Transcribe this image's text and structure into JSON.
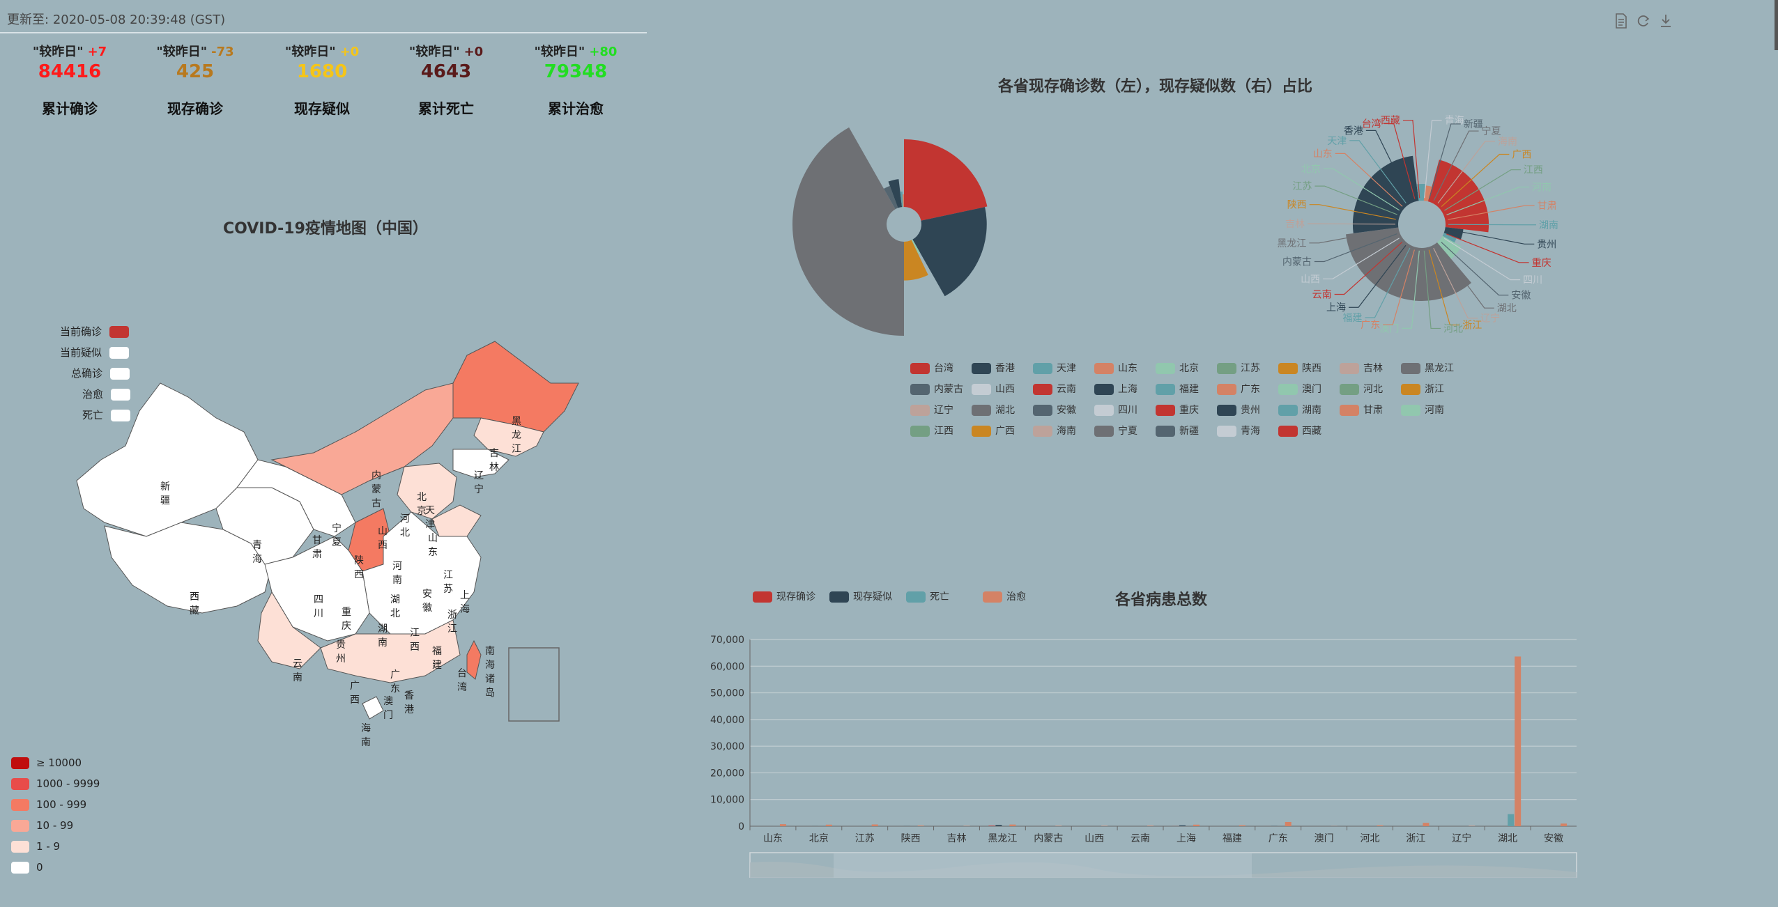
{
  "header": {
    "update_label": "更新至:",
    "update_time": "2020-05-08 20:39:48 (GST)"
  },
  "stats": [
    {
      "compare": "\"较昨日\"",
      "delta": "+7",
      "value": "84416",
      "label": "累计确诊",
      "color": "#ff1a1a",
      "delta_color": "#ff1a1a"
    },
    {
      "compare": "\"较昨日\"",
      "delta": "-73",
      "value": "425",
      "label": "现存确诊",
      "color": "#b8791e",
      "delta_color": "#b8791e"
    },
    {
      "compare": "\"较昨日\"",
      "delta": "+0",
      "value": "1680",
      "label": "现存疑似",
      "color": "#f5c518",
      "delta_color": "#f5c518"
    },
    {
      "compare": "\"较昨日\"",
      "delta": "+0",
      "value": "4643",
      "label": "累计死亡",
      "color": "#5a1a1a",
      "delta_color": "#5a1a1a"
    },
    {
      "compare": "\"较昨日\"",
      "delta": "+80",
      "value": "79348",
      "label": "累计治愈",
      "color": "#22dd22",
      "delta_color": "#22dd22"
    }
  ],
  "toolbar": {
    "icons": [
      "document-icon",
      "refresh-icon",
      "download-icon"
    ]
  },
  "map": {
    "title": "COVID-19疫情地图（中国）",
    "series_legend": [
      {
        "label": "当前确诊",
        "color": "#c23531"
      },
      {
        "label": "当前疑似",
        "color": "#ffffff"
      },
      {
        "label": "总确诊",
        "color": "#ffffff"
      },
      {
        "label": "治愈",
        "color": "#ffffff"
      },
      {
        "label": "死亡",
        "color": "#ffffff"
      }
    ],
    "visual_map": [
      {
        "label": "≥ 10000",
        "color": "#c00e0e"
      },
      {
        "label": "1000 - 9999",
        "color": "#e84c4a"
      },
      {
        "label": "100 - 999",
        "color": "#f47a62"
      },
      {
        "label": "10 - 99",
        "color": "#f9a896"
      },
      {
        "label": "1 - 9",
        "color": "#fde0d6"
      },
      {
        "label": "0",
        "color": "#ffffff"
      }
    ],
    "province_labels": [
      "黑龙江",
      "吉林",
      "辽宁",
      "内蒙古",
      "北京",
      "天津",
      "河北",
      "山西",
      "山东",
      "新疆",
      "西藏",
      "青海",
      "甘肃",
      "宁夏",
      "陕西",
      "河南",
      "江苏",
      "上海",
      "安徽",
      "湖北",
      "浙江",
      "四川",
      "重庆",
      "湖南",
      "江西",
      "福建",
      "台湾",
      "贵州",
      "云南",
      "广西",
      "广东",
      "香港",
      "澳门",
      "海南",
      "南海诸岛"
    ]
  },
  "pie": {
    "title": "各省现存确诊数（左），现存疑似数（右）占比",
    "legend": [
      {
        "name": "台湾",
        "color": "#c23531"
      },
      {
        "name": "香港",
        "color": "#2f4554"
      },
      {
        "name": "天津",
        "color": "#61a0a8"
      },
      {
        "name": "山东",
        "color": "#d48265"
      },
      {
        "name": "北京",
        "color": "#91c7ae"
      },
      {
        "name": "江苏",
        "color": "#749f83"
      },
      {
        "name": "陕西",
        "color": "#ca8622"
      },
      {
        "name": "吉林",
        "color": "#bda29a"
      },
      {
        "name": "黑龙江",
        "color": "#6e7074"
      },
      {
        "name": "内蒙古",
        "color": "#546570"
      },
      {
        "name": "山西",
        "color": "#c4ccd3"
      },
      {
        "name": "云南",
        "color": "#c23531"
      },
      {
        "name": "上海",
        "color": "#2f4554"
      },
      {
        "name": "福建",
        "color": "#61a0a8"
      },
      {
        "name": "广东",
        "color": "#d48265"
      },
      {
        "name": "澳门",
        "color": "#91c7ae"
      },
      {
        "name": "河北",
        "color": "#749f83"
      },
      {
        "name": "浙江",
        "color": "#ca8622"
      },
      {
        "name": "辽宁",
        "color": "#bda29a"
      },
      {
        "name": "湖北",
        "color": "#6e7074"
      },
      {
        "name": "安徽",
        "color": "#546570"
      },
      {
        "name": "四川",
        "color": "#c4ccd3"
      },
      {
        "name": "重庆",
        "color": "#c23531"
      },
      {
        "name": "贵州",
        "color": "#2f4554"
      },
      {
        "name": "湖南",
        "color": "#61a0a8"
      },
      {
        "name": "甘肃",
        "color": "#d48265"
      },
      {
        "name": "河南",
        "color": "#91c7ae"
      },
      {
        "name": "江西",
        "color": "#749f83"
      },
      {
        "name": "广西",
        "color": "#ca8622"
      },
      {
        "name": "海南",
        "color": "#bda29a"
      },
      {
        "name": "宁夏",
        "color": "#6e7074"
      },
      {
        "name": "新疆",
        "color": "#546570"
      },
      {
        "name": "青海",
        "color": "#c4ccd3"
      },
      {
        "name": "西藏",
        "color": "#c23531"
      }
    ],
    "right_labels": [
      {
        "name": "西藏",
        "color": "#c23531"
      },
      {
        "name": "青海",
        "color": "#c4ccd3"
      },
      {
        "name": "新疆",
        "color": "#546570"
      },
      {
        "name": "宁夏",
        "color": "#6e7074"
      },
      {
        "name": "海南",
        "color": "#bda29a"
      },
      {
        "name": "广西",
        "color": "#ca8622"
      },
      {
        "name": "江西",
        "color": "#749f83"
      },
      {
        "name": "河南",
        "color": "#91c7ae"
      },
      {
        "name": "甘肃",
        "color": "#d48265"
      },
      {
        "name": "湖南",
        "color": "#61a0a8"
      },
      {
        "name": "贵州",
        "color": "#2f4554"
      },
      {
        "name": "重庆",
        "color": "#c23531"
      },
      {
        "name": "四川",
        "color": "#c4ccd3"
      },
      {
        "name": "安徽",
        "color": "#546570"
      },
      {
        "name": "湖北",
        "color": "#6e7074"
      },
      {
        "name": "辽宁",
        "color": "#bda29a"
      },
      {
        "name": "浙江",
        "color": "#ca8622"
      },
      {
        "name": "河北",
        "color": "#749f83"
      },
      {
        "name": "澳门",
        "color": "#91c7ae"
      },
      {
        "name": "广东",
        "color": "#d48265"
      },
      {
        "name": "福建",
        "color": "#61a0a8"
      },
      {
        "name": "上海",
        "color": "#2f4554"
      },
      {
        "name": "云南",
        "color": "#c23531"
      },
      {
        "name": "山西",
        "color": "#c4ccd3"
      },
      {
        "name": "内蒙古",
        "color": "#546570"
      },
      {
        "name": "黑龙江",
        "color": "#6e7074"
      },
      {
        "name": "吉林",
        "color": "#bda29a"
      },
      {
        "name": "陕西",
        "color": "#ca8622"
      },
      {
        "name": "江苏",
        "color": "#749f83"
      },
      {
        "name": "北京",
        "color": "#91c7ae"
      },
      {
        "name": "山东",
        "color": "#d48265"
      },
      {
        "name": "天津",
        "color": "#61a0a8"
      },
      {
        "name": "香港",
        "color": "#2f4554"
      },
      {
        "name": "台湾",
        "color": "#c23531"
      }
    ]
  },
  "chart_data": [
    {
      "type": "pie",
      "title": "各省现存确诊数（左），现存疑似数（右）占比",
      "rose_type": "radius",
      "left_ring_note": "现存确诊",
      "slices": [
        {
          "name": "台湾",
          "value": 58
        },
        {
          "name": "香港",
          "value": 54
        },
        {
          "name": "北京",
          "value": 3
        },
        {
          "name": "陕西",
          "value": 19
        },
        {
          "name": "黑龙江",
          "value": 112
        },
        {
          "name": "内蒙古",
          "value": 7
        },
        {
          "name": "上海",
          "value": 10
        },
        {
          "name": "福建",
          "value": 3
        },
        {
          "name": "广东",
          "value": 2
        }
      ],
      "right_ring_note": "现存疑似",
      "right_slices": [
        {
          "name": "台湾",
          "value": 80
        },
        {
          "name": "香港",
          "value": 14
        },
        {
          "name": "天津",
          "value": 8
        },
        {
          "name": "北京",
          "value": 20
        },
        {
          "name": "黑龙江",
          "value": 120
        },
        {
          "name": "上海",
          "value": 88
        },
        {
          "name": "福建",
          "value": 12
        },
        {
          "name": "广东",
          "value": 10
        }
      ]
    },
    {
      "type": "bar",
      "title": "各省病患总数",
      "categories": [
        "山东",
        "北京",
        "江苏",
        "陕西",
        "吉林",
        "黑龙江",
        "内蒙古",
        "山西",
        "云南",
        "上海",
        "福建",
        "广东",
        "澳门",
        "河北",
        "浙江",
        "辽宁",
        "湖北",
        "安徽"
      ],
      "series": [
        {
          "name": "现存确诊",
          "color": "#c23531",
          "values": [
            0,
            2,
            0,
            0,
            2,
            200,
            10,
            0,
            0,
            25,
            0,
            10,
            0,
            0,
            0,
            0,
            0,
            0
          ]
        },
        {
          "name": "现存疑似",
          "color": "#2f4554",
          "values": [
            0,
            20,
            10,
            40,
            0,
            450,
            0,
            0,
            0,
            300,
            10,
            60,
            0,
            0,
            0,
            0,
            0,
            0
          ]
        },
        {
          "name": "死亡",
          "color": "#61a0a8",
          "values": [
            7,
            9,
            0,
            3,
            1,
            13,
            1,
            0,
            2,
            7,
            1,
            8,
            0,
            6,
            1,
            2,
            4512,
            6
          ]
        },
        {
          "name": "治愈",
          "color": "#d48265",
          "values": [
            750,
            580,
            650,
            245,
            105,
            620,
            140,
            133,
            183,
            580,
            352,
            1581,
            45,
            321,
            1263,
            131,
            63616,
            984
          ]
        }
      ],
      "ylim": [
        0,
        70000
      ],
      "yticks": [
        "0",
        "10,000",
        "20,000",
        "30,000",
        "40,000",
        "50,000",
        "60,000",
        "70,000"
      ],
      "grid": true,
      "legend_position": "top-left"
    }
  ]
}
